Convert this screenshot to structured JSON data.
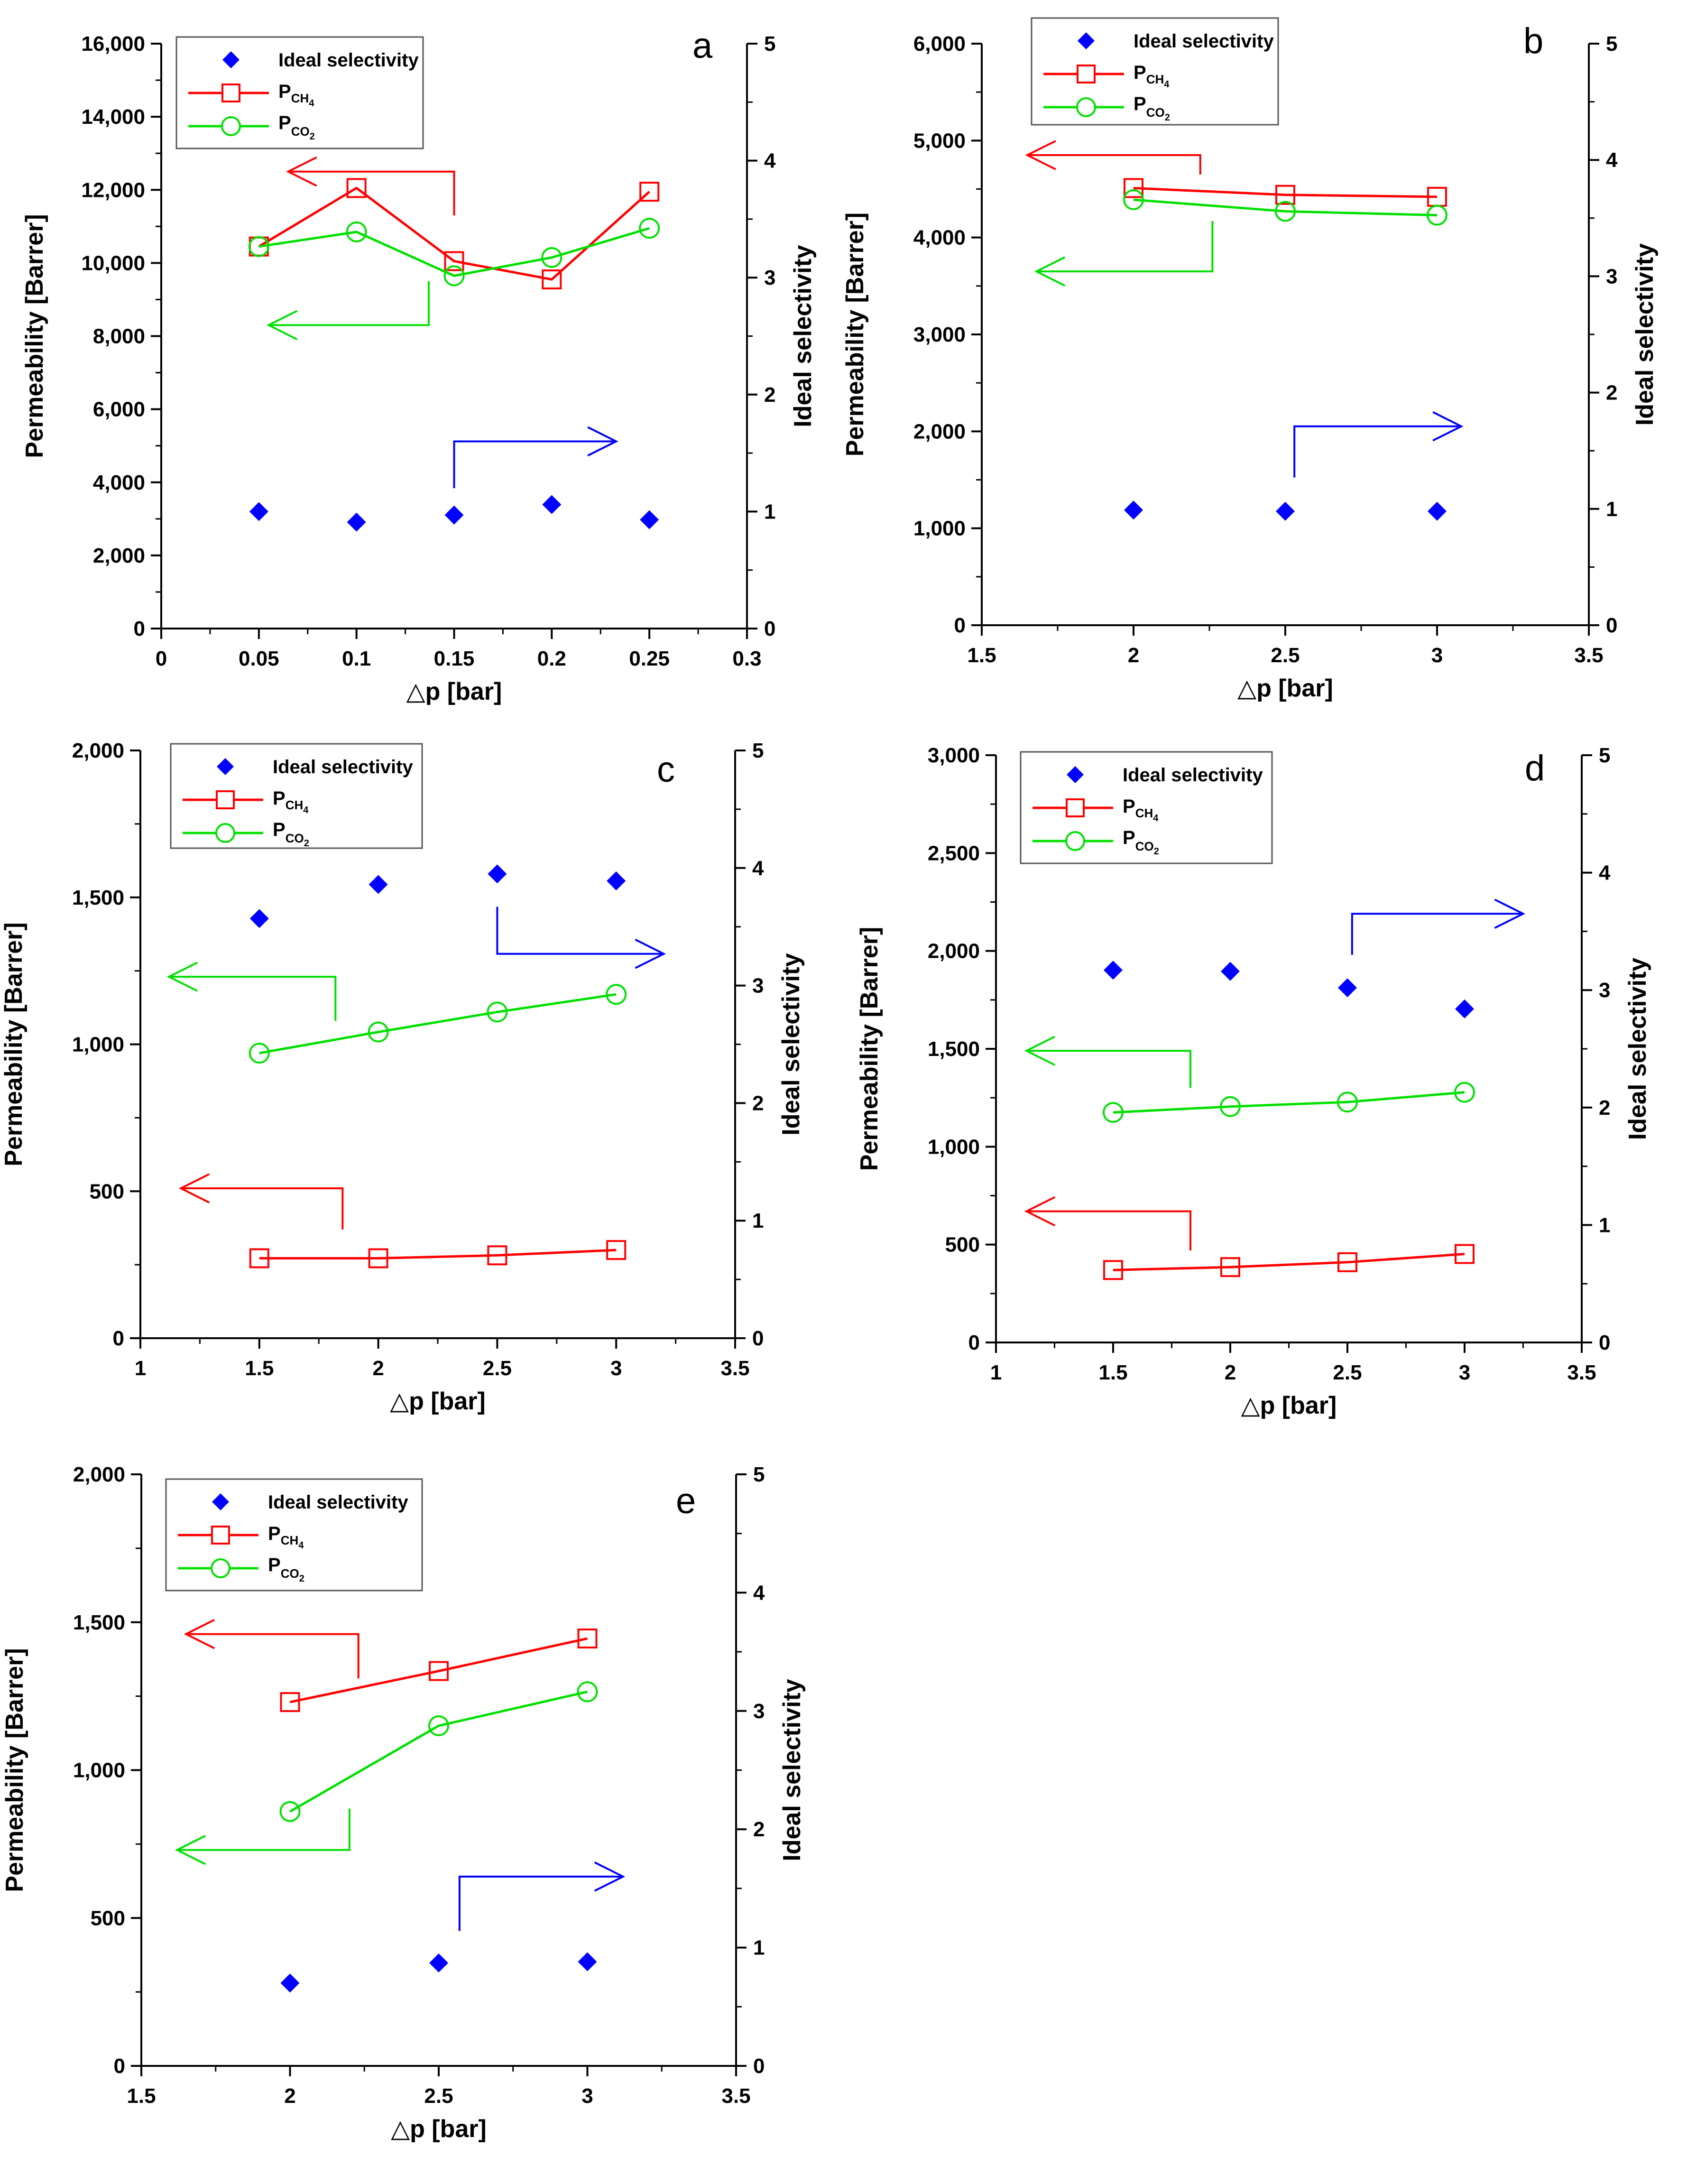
{
  "colors": {
    "ratio": "#0000ff",
    "ch4": "#ff0000",
    "co2": "#00e000",
    "axis": "#000000"
  },
  "legend_labels": {
    "ratio": "Ideal selectivity",
    "ch4_main": "P",
    "ch4_sub": "CH",
    "ch4_subsub": "4",
    "co2_main": "P",
    "co2_sub": "CO",
    "co2_subsub": "2"
  },
  "chart_data": [
    {
      "panel": "a",
      "type": "line",
      "xlabel": "△p [bar]",
      "ylabel": "Permeability [Barrer]",
      "y2label": "Ideal selectivity",
      "xlim": [
        0,
        0.3
      ],
      "ylim": [
        0,
        16000
      ],
      "y2lim": [
        0,
        5
      ],
      "x_ticks": [
        0,
        0.05,
        0.1,
        0.15,
        0.2,
        0.25,
        0.3
      ],
      "x_tick_labels": [
        "0",
        "0.05",
        "0.1",
        "0.15",
        "0.2",
        "0.25",
        "0.3"
      ],
      "y_ticks": [
        0,
        2000,
        4000,
        6000,
        8000,
        10000,
        12000,
        14000,
        16000
      ],
      "y_tick_labels": [
        "0",
        "2,000",
        "4,000",
        "6,000",
        "8,000",
        "10,000",
        "12,000",
        "14,000",
        "16,000"
      ],
      "y2_ticks": [
        0,
        1,
        2,
        3,
        4,
        5
      ],
      "y2_tick_labels": [
        "0",
        "1",
        "2",
        "3",
        "4",
        "5"
      ],
      "legend_position": "top-left",
      "series": [
        {
          "name": "Ideal selectivity",
          "role": "ratio",
          "axis": "right",
          "x": [
            0.05,
            0.1,
            0.15,
            0.2,
            0.25
          ],
          "values": [
            1.0,
            0.91,
            0.97,
            1.06,
            0.93
          ]
        },
        {
          "name": "P_CH4",
          "role": "ch4",
          "axis": "left",
          "x": [
            0.05,
            0.1,
            0.15,
            0.2,
            0.25
          ],
          "values": [
            10450,
            12050,
            10050,
            9550,
            11950
          ]
        },
        {
          "name": "P_CO2",
          "role": "co2",
          "axis": "left",
          "x": [
            0.05,
            0.1,
            0.15,
            0.2,
            0.25
          ],
          "values": [
            10450,
            10850,
            9650,
            10150,
            10950
          ]
        }
      ],
      "annotations": [
        {
          "role": "ch4",
          "points": [
            [
              0.15,
              11300
            ],
            [
              0.15,
              12500
            ],
            [
              0.065,
              12500
            ]
          ]
        },
        {
          "role": "co2",
          "points": [
            [
              0.137,
              9500
            ],
            [
              0.137,
              8300
            ],
            [
              0.055,
              8300
            ]
          ]
        },
        {
          "role": "ratio",
          "points": [
            [
              0.15,
              1.2
            ],
            [
              0.15,
              1.6
            ],
            [
              0.233,
              1.6
            ]
          ]
        }
      ]
    },
    {
      "panel": "b",
      "type": "line",
      "xlabel": "△p [bar]",
      "ylabel": "Permeability [Barrer]",
      "y2label": "Ideal selectivity",
      "xlim": [
        1.5,
        3.5
      ],
      "ylim": [
        0,
        6000
      ],
      "y2lim": [
        0,
        5
      ],
      "x_ticks": [
        1.5,
        2,
        2.5,
        3,
        3.5
      ],
      "x_tick_labels": [
        "1.5",
        "2",
        "2.5",
        "3",
        "3.5"
      ],
      "y_ticks": [
        0,
        1000,
        2000,
        3000,
        4000,
        5000,
        6000
      ],
      "y_tick_labels": [
        "0",
        "1,000",
        "2,000",
        "3,000",
        "4,000",
        "5,000",
        "6,000"
      ],
      "y2_ticks": [
        0,
        1,
        2,
        3,
        4,
        5
      ],
      "y2_tick_labels": [
        "0",
        "1",
        "2",
        "3",
        "4",
        "5"
      ],
      "legend_position": "top-left",
      "series": [
        {
          "name": "Ideal selectivity",
          "role": "ratio",
          "axis": "right",
          "x": [
            2,
            2.5,
            3
          ],
          "values": [
            0.99,
            0.98,
            0.98
          ]
        },
        {
          "name": "P_CH4",
          "role": "ch4",
          "axis": "left",
          "x": [
            2,
            2.5,
            3
          ],
          "values": [
            4510,
            4440,
            4420
          ]
        },
        {
          "name": "P_CO2",
          "role": "co2",
          "axis": "left",
          "x": [
            2,
            2.5,
            3
          ],
          "values": [
            4390,
            4270,
            4230
          ]
        }
      ],
      "annotations": [
        {
          "role": "ch4",
          "points": [
            [
              2.22,
              4650
            ],
            [
              2.22,
              4850
            ],
            [
              1.65,
              4850
            ]
          ]
        },
        {
          "role": "co2",
          "points": [
            [
              2.26,
              4170
            ],
            [
              2.26,
              3650
            ],
            [
              1.68,
              3650
            ]
          ]
        },
        {
          "role": "ratio",
          "points": [
            [
              2.53,
              1.27
            ],
            [
              2.53,
              1.71
            ],
            [
              3.08,
              1.71
            ]
          ]
        }
      ]
    },
    {
      "panel": "c",
      "type": "line",
      "xlabel": "△p [bar]",
      "ylabel": "Permeability [Barrer]",
      "y2label": "Ideal selectivity",
      "xlim": [
        1,
        3.5
      ],
      "ylim": [
        0,
        2000
      ],
      "y2lim": [
        0,
        5
      ],
      "x_ticks": [
        1,
        1.5,
        2,
        2.5,
        3,
        3.5
      ],
      "x_tick_labels": [
        "1",
        "1.5",
        "2",
        "2.5",
        "3",
        "3.5"
      ],
      "y_ticks": [
        0,
        500,
        1000,
        1500,
        2000
      ],
      "y_tick_labels": [
        "0",
        "500",
        "1,000",
        "1,500",
        "2,000"
      ],
      "y2_ticks": [
        0,
        1,
        2,
        3,
        4,
        5
      ],
      "y2_tick_labels": [
        "0",
        "1",
        "2",
        "3",
        "4",
        "5"
      ],
      "legend_position": "top-left",
      "series": [
        {
          "name": "Ideal selectivity",
          "role": "ratio",
          "axis": "right",
          "x": [
            1.5,
            2,
            2.5,
            3
          ],
          "values": [
            3.57,
            3.86,
            3.95,
            3.89
          ]
        },
        {
          "name": "P_CH4",
          "role": "ch4",
          "axis": "left",
          "x": [
            1.5,
            2,
            2.5,
            3
          ],
          "values": [
            272,
            272,
            282,
            300
          ]
        },
        {
          "name": "P_CO2",
          "role": "co2",
          "axis": "left",
          "x": [
            1.5,
            2,
            2.5,
            3
          ],
          "values": [
            970,
            1042,
            1110,
            1170
          ]
        }
      ],
      "annotations": [
        {
          "role": "co2",
          "points": [
            [
              1.82,
              1080
            ],
            [
              1.82,
              1230
            ],
            [
              1.12,
              1230
            ]
          ]
        },
        {
          "role": "ch4",
          "points": [
            [
              1.85,
              370
            ],
            [
              1.85,
              510
            ],
            [
              1.17,
              510
            ]
          ]
        },
        {
          "role": "ratio",
          "points": [
            [
              2.5,
              3.67
            ],
            [
              2.5,
              3.27
            ],
            [
              3.2,
              3.27
            ]
          ]
        }
      ]
    },
    {
      "panel": "d",
      "type": "line",
      "xlabel": "△p [bar]",
      "ylabel": "Permeability [Barrer]",
      "y2label": "Ideal selectivity",
      "xlim": [
        1,
        3.5
      ],
      "ylim": [
        0,
        3000
      ],
      "y2lim": [
        0,
        5
      ],
      "x_ticks": [
        1,
        1.5,
        2,
        2.5,
        3,
        3.5
      ],
      "x_tick_labels": [
        "1",
        "1.5",
        "2",
        "2.5",
        "3",
        "3.5"
      ],
      "y_ticks": [
        0,
        500,
        1000,
        1500,
        2000,
        2500,
        3000
      ],
      "y_tick_labels": [
        "0",
        "500",
        "1,000",
        "1,500",
        "2,000",
        "2,500",
        "3,000"
      ],
      "y2_ticks": [
        0,
        1,
        2,
        3,
        4,
        5
      ],
      "y2_tick_labels": [
        "0",
        "1",
        "2",
        "3",
        "4",
        "5"
      ],
      "legend_position": "top-left",
      "series": [
        {
          "name": "Ideal selectivity",
          "role": "ratio",
          "axis": "right",
          "x": [
            1.5,
            2,
            2.5,
            3
          ],
          "values": [
            3.17,
            3.16,
            3.02,
            2.84
          ]
        },
        {
          "name": "P_CH4",
          "role": "ch4",
          "axis": "left",
          "x": [
            1.5,
            2,
            2.5,
            3
          ],
          "values": [
            370,
            385,
            410,
            452
          ]
        },
        {
          "name": "P_CO2",
          "role": "co2",
          "axis": "left",
          "x": [
            1.5,
            2,
            2.5,
            3
          ],
          "values": [
            1175,
            1205,
            1228,
            1278
          ]
        }
      ],
      "annotations": [
        {
          "role": "co2",
          "points": [
            [
              1.83,
              1300
            ],
            [
              1.83,
              1490
            ],
            [
              1.13,
              1490
            ]
          ]
        },
        {
          "role": "ch4",
          "points": [
            [
              1.83,
              470
            ],
            [
              1.83,
              670
            ],
            [
              1.13,
              670
            ]
          ]
        },
        {
          "role": "ratio",
          "points": [
            [
              2.52,
              3.3
            ],
            [
              2.52,
              3.65
            ],
            [
              3.25,
              3.65
            ]
          ]
        }
      ]
    },
    {
      "panel": "e",
      "type": "line",
      "xlabel": "△p [bar]",
      "ylabel": "Permeability [Barrer]",
      "y2label": "Ideal selectivity",
      "xlim": [
        1.5,
        3.5
      ],
      "ylim": [
        0,
        2000
      ],
      "y2lim": [
        0,
        5
      ],
      "x_ticks": [
        1.5,
        2,
        2.5,
        3,
        3.5
      ],
      "x_tick_labels": [
        "1.5",
        "2",
        "2.5",
        "3",
        "3.5"
      ],
      "y_ticks": [
        0,
        500,
        1000,
        1500,
        2000
      ],
      "y_tick_labels": [
        "0",
        "500",
        "1,000",
        "1,500",
        "2,000"
      ],
      "y2_ticks": [
        0,
        1,
        2,
        3,
        4,
        5
      ],
      "y2_tick_labels": [
        "0",
        "1",
        "2",
        "3",
        "4",
        "5"
      ],
      "legend_position": "top-left",
      "series": [
        {
          "name": "Ideal selectivity",
          "role": "ratio",
          "axis": "right",
          "x": [
            2,
            2.5,
            3
          ],
          "values": [
            0.7,
            0.87,
            0.88
          ]
        },
        {
          "name": "P_CH4",
          "role": "ch4",
          "axis": "left",
          "x": [
            2,
            2.5,
            3
          ],
          "values": [
            1230,
            1335,
            1445
          ]
        },
        {
          "name": "P_CO2",
          "role": "co2",
          "axis": "left",
          "x": [
            2,
            2.5,
            3
          ],
          "values": [
            860,
            1150,
            1265
          ]
        }
      ],
      "annotations": [
        {
          "role": "ch4",
          "points": [
            [
              2.23,
              1310
            ],
            [
              2.23,
              1460
            ],
            [
              1.65,
              1460
            ]
          ]
        },
        {
          "role": "co2",
          "points": [
            [
              2.2,
              870
            ],
            [
              2.2,
              730
            ],
            [
              1.62,
              730
            ]
          ]
        },
        {
          "role": "ratio",
          "points": [
            [
              2.57,
              1.14
            ],
            [
              2.57,
              1.6
            ],
            [
              3.12,
              1.6
            ]
          ]
        }
      ]
    }
  ]
}
